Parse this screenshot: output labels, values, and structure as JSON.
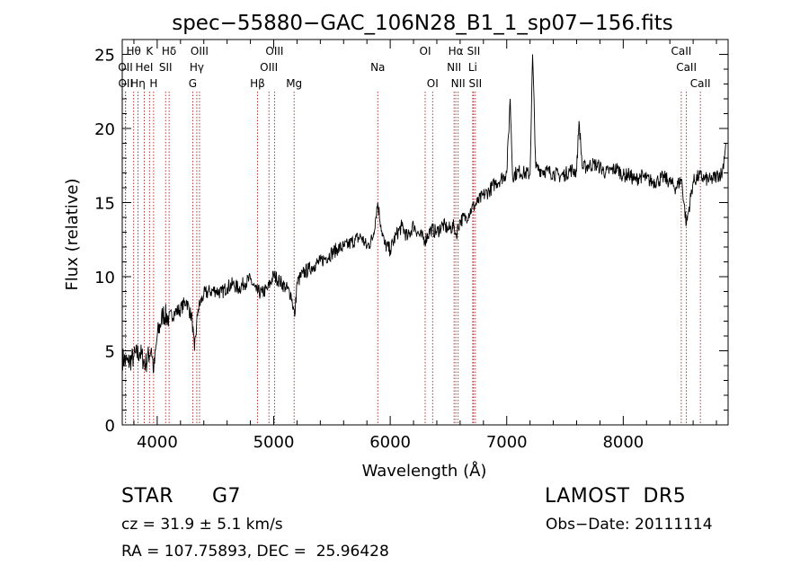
{
  "chart_data": {
    "type": "line",
    "title": "spec−55880−GAC_106N28_B1_1_sp07−156.fits",
    "xlabel": "Wavelength (Å)",
    "ylabel": "Flux (relative)",
    "xlim": [
      3700,
      8900
    ],
    "ylim": [
      0,
      26
    ],
    "x_ticks": [
      4000,
      5000,
      6000,
      7000,
      8000
    ],
    "y_ticks": [
      0,
      5,
      10,
      15,
      20,
      25
    ],
    "grid": false,
    "legend": "none",
    "line_color": "#000000",
    "marker_color": "#aa2222",
    "line_markers": [
      {
        "label": "Hθ",
        "wavelength": 3798,
        "row": 0
      },
      {
        "label": "OII",
        "wavelength": 3727,
        "row": 1
      },
      {
        "label": "OII",
        "wavelength": 3729,
        "row": 2
      },
      {
        "label": "Hη",
        "wavelength": 3835,
        "row": 2
      },
      {
        "label": "HeI",
        "wavelength": 3889,
        "row": 1
      },
      {
        "label": "K",
        "wavelength": 3934,
        "row": 0
      },
      {
        "label": "H",
        "wavelength": 3969,
        "row": 2
      },
      {
        "label": "Hδ",
        "wavelength": 4102,
        "row": 0
      },
      {
        "label": "SII",
        "wavelength": 4072,
        "row": 1
      },
      {
        "label": "OIII",
        "wavelength": 4363,
        "row": 0
      },
      {
        "label": "Hγ",
        "wavelength": 4340,
        "row": 1
      },
      {
        "label": "G",
        "wavelength": 4305,
        "row": 2
      },
      {
        "label": "Hβ",
        "wavelength": 4861,
        "row": 2
      },
      {
        "label": "OIII",
        "wavelength": 5007,
        "row": 0
      },
      {
        "label": "OIII",
        "wavelength": 4959,
        "row": 1
      },
      {
        "label": "Mg",
        "wavelength": 5175,
        "row": 2
      },
      {
        "label": "Na",
        "wavelength": 5893,
        "row": 1
      },
      {
        "label": "OI",
        "wavelength": 6300,
        "row": 0
      },
      {
        "label": "OI",
        "wavelength": 6364,
        "row": 2
      },
      {
        "label": "Hα",
        "wavelength": 6563,
        "row": 0
      },
      {
        "label": "NII",
        "wavelength": 6548,
        "row": 1
      },
      {
        "label": "NII",
        "wavelength": 6583,
        "row": 2
      },
      {
        "label": "SII",
        "wavelength": 6716,
        "row": 0
      },
      {
        "label": "Li",
        "wavelength": 6708,
        "row": 1
      },
      {
        "label": "SII",
        "wavelength": 6731,
        "row": 2
      },
      {
        "label": "CaII",
        "wavelength": 8498,
        "row": 0
      },
      {
        "label": "CaII",
        "wavelength": 8542,
        "row": 1
      },
      {
        "label": "CaII",
        "wavelength": 8662,
        "row": 2
      }
    ],
    "series": [
      {
        "x": [
          3700,
          3750,
          3800,
          3850,
          3900,
          3950,
          3970,
          4000,
          4050,
          4100,
          4150,
          4200,
          4250,
          4300,
          4320,
          4350,
          4400,
          4450,
          4500,
          4550,
          4600,
          4650,
          4700,
          4750,
          4800,
          4850,
          4900,
          4950,
          5000,
          5050,
          5100,
          5150,
          5180,
          5200,
          5250,
          5300,
          5350,
          5400,
          5450,
          5500,
          5550,
          5600,
          5650,
          5700,
          5750,
          5800,
          5850,
          5893,
          5920,
          5950,
          6000,
          6050,
          6100,
          6150,
          6200,
          6250,
          6300,
          6350,
          6400,
          6450,
          6500,
          6550,
          6563,
          6600,
          6650,
          6700,
          6750,
          6800,
          6850,
          6900,
          6950,
          7000,
          7030,
          7050,
          7100,
          7150,
          7200,
          7222,
          7250,
          7300,
          7350,
          7400,
          7450,
          7500,
          7550,
          7600,
          7620,
          7650,
          7700,
          7750,
          7800,
          7850,
          7900,
          7950,
          8000,
          8050,
          8100,
          8150,
          8200,
          8250,
          8300,
          8350,
          8400,
          8450,
          8500,
          8542,
          8600,
          8650,
          8700,
          8750,
          8800,
          8850,
          8880
        ],
        "y": [
          4.5,
          4.2,
          4.6,
          4.9,
          4.1,
          5.2,
          3.6,
          6.0,
          7.5,
          7.2,
          7.6,
          7.8,
          8.4,
          7.1,
          5.0,
          7.8,
          8.8,
          9.0,
          9.1,
          8.9,
          9.3,
          9.5,
          9.2,
          9.6,
          9.8,
          9.0,
          8.9,
          9.2,
          10.1,
          9.7,
          9.3,
          8.8,
          7.3,
          9.6,
          10.2,
          10.5,
          10.8,
          11.0,
          11.3,
          11.6,
          11.9,
          12.0,
          12.2,
          12.5,
          12.7,
          12.0,
          12.6,
          15.0,
          13.5,
          12.2,
          11.8,
          12.8,
          13.4,
          12.6,
          13.5,
          12.8,
          12.5,
          13.2,
          13.0,
          13.5,
          13.2,
          13.4,
          12.8,
          13.8,
          14.0,
          14.6,
          15.0,
          15.5,
          15.8,
          16.3,
          16.6,
          17.0,
          22.0,
          16.8,
          17.1,
          17.0,
          16.9,
          25.0,
          17.3,
          17.2,
          17.1,
          17.0,
          16.8,
          16.9,
          17.2,
          17.1,
          20.5,
          17.3,
          17.5,
          17.6,
          17.4,
          17.0,
          17.2,
          17.3,
          16.8,
          16.9,
          16.5,
          16.8,
          16.6,
          16.4,
          16.5,
          16.7,
          16.4,
          16.0,
          16.6,
          13.5,
          16.4,
          16.8,
          16.6,
          16.5,
          16.8,
          17.0,
          19.0
        ]
      }
    ]
  },
  "info": {
    "class_label": "STAR",
    "subclass": "G7",
    "survey": "LAMOST  DR5",
    "redshift_line": "cz = 31.9 ± 5.1 km/s",
    "obs_date_line": "Obs−Date: 20111114",
    "coords_line": "RA = 107.75893, DEC =  25.96428"
  }
}
